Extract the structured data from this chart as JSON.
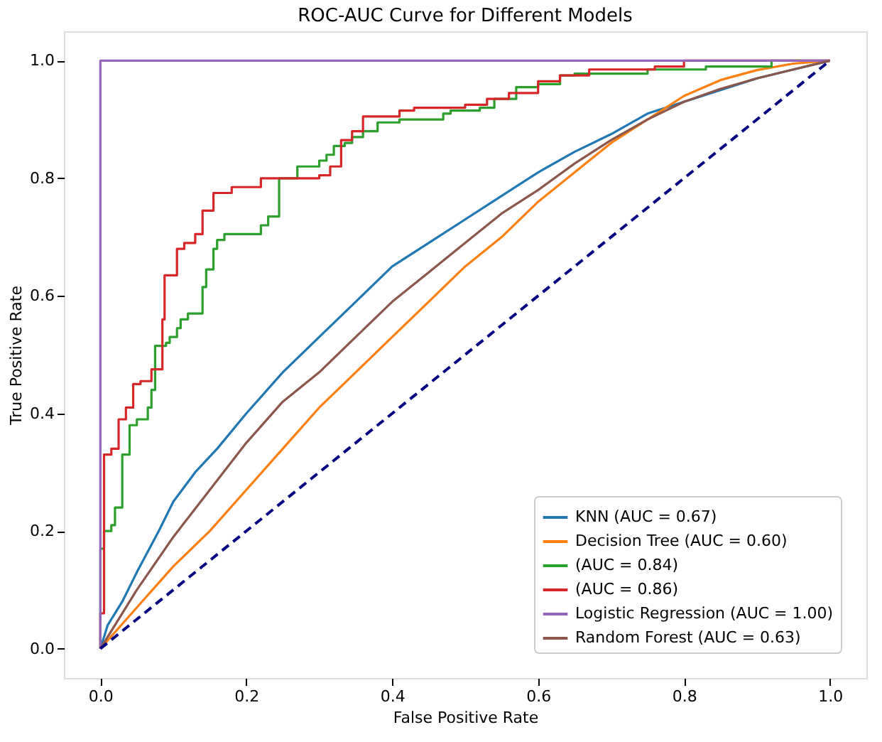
{
  "chart_data": {
    "type": "line",
    "title": "ROC-AUC Curve for Different Models",
    "xlabel": "False Positive Rate",
    "ylabel": "True Positive Rate",
    "xlim": [
      -0.05,
      1.05
    ],
    "ylim": [
      -0.05,
      1.05
    ],
    "xticks": [
      {
        "value": 0,
        "label": "0.0"
      },
      {
        "value": 0.2,
        "label": "0.2"
      },
      {
        "value": 0.4,
        "label": "0.4"
      },
      {
        "value": 0.6,
        "label": "0.6"
      },
      {
        "value": 0.8,
        "label": "0.8"
      },
      {
        "value": 1,
        "label": "1.0"
      }
    ],
    "yticks": [
      {
        "value": 0,
        "label": "0.0"
      },
      {
        "value": 0.2,
        "label": "0.2"
      },
      {
        "value": 0.4,
        "label": "0.4"
      },
      {
        "value": 0.6,
        "label": "0.6"
      },
      {
        "value": 0.8,
        "label": "0.8"
      },
      {
        "value": 1,
        "label": "1.0"
      }
    ],
    "grid": false,
    "legend": "bottom right",
    "series": [
      {
        "name": "KNN (AUC = 0.67)",
        "color": "#1f77b4",
        "x": [
          0,
          0.01,
          0.03,
          0.05,
          0.08,
          0.1,
          0.13,
          0.16,
          0.2,
          0.25,
          0.3,
          0.35,
          0.4,
          0.45,
          0.5,
          0.55,
          0.6,
          0.65,
          0.7,
          0.75,
          0.8,
          0.85,
          0.9,
          0.95,
          1
        ],
        "values": [
          0,
          0.04,
          0.08,
          0.13,
          0.2,
          0.25,
          0.3,
          0.34,
          0.4,
          0.47,
          0.53,
          0.59,
          0.65,
          0.69,
          0.73,
          0.77,
          0.81,
          0.845,
          0.875,
          0.91,
          0.93,
          0.95,
          0.97,
          0.985,
          1
        ]
      },
      {
        "name": "Decision Tree (AUC = 0.60)",
        "color": "#ff7f0e",
        "x": [
          0,
          0.05,
          0.1,
          0.15,
          0.2,
          0.25,
          0.3,
          0.35,
          0.4,
          0.45,
          0.5,
          0.55,
          0.6,
          0.65,
          0.7,
          0.75,
          0.8,
          0.85,
          0.9,
          0.95,
          1
        ],
        "values": [
          0,
          0.07,
          0.14,
          0.2,
          0.27,
          0.34,
          0.41,
          0.47,
          0.53,
          0.59,
          0.65,
          0.7,
          0.76,
          0.81,
          0.86,
          0.9,
          0.94,
          0.967,
          0.984,
          0.995,
          1
        ]
      },
      {
        "name": "(AUC = 0.84)",
        "color": "#2ca02c",
        "type": "step",
        "x": [
          0,
          0,
          0.005,
          0.015,
          0.02,
          0.03,
          0.04,
          0.05,
          0.065,
          0.07,
          0.075,
          0.09,
          0.095,
          0.105,
          0.11,
          0.12,
          0.14,
          0.145,
          0.155,
          0.16,
          0.17,
          0.22,
          0.23,
          0.245,
          0.27,
          0.3,
          0.31,
          0.32,
          0.335,
          0.345,
          0.36,
          0.38,
          0.41,
          0.47,
          0.48,
          0.52,
          0.54,
          0.57,
          0.6,
          0.63,
          0.65,
          0.75,
          0.83,
          0.92,
          1
        ],
        "values": [
          0,
          0.17,
          0.2,
          0.21,
          0.24,
          0.33,
          0.38,
          0.39,
          0.41,
          0.44,
          0.515,
          0.52,
          0.53,
          0.545,
          0.56,
          0.57,
          0.615,
          0.645,
          0.68,
          0.695,
          0.705,
          0.72,
          0.735,
          0.8,
          0.82,
          0.83,
          0.84,
          0.855,
          0.86,
          0.87,
          0.88,
          0.895,
          0.9,
          0.91,
          0.915,
          0.92,
          0.935,
          0.955,
          0.96,
          0.975,
          0.978,
          0.985,
          0.99,
          1,
          1
        ]
      },
      {
        "name": "(AUC = 0.86)",
        "color": "#d62728",
        "type": "step",
        "x": [
          0,
          0,
          0.005,
          0.015,
          0.025,
          0.035,
          0.045,
          0.055,
          0.07,
          0.085,
          0.088,
          0.105,
          0.115,
          0.13,
          0.14,
          0.155,
          0.18,
          0.22,
          0.3,
          0.315,
          0.33,
          0.345,
          0.36,
          0.41,
          0.43,
          0.5,
          0.53,
          0.56,
          0.6,
          0.63,
          0.67,
          0.76,
          0.8,
          1
        ],
        "values": [
          0,
          0.06,
          0.33,
          0.34,
          0.39,
          0.41,
          0.45,
          0.455,
          0.475,
          0.56,
          0.635,
          0.68,
          0.69,
          0.705,
          0.745,
          0.775,
          0.785,
          0.8,
          0.805,
          0.82,
          0.865,
          0.88,
          0.905,
          0.915,
          0.92,
          0.925,
          0.935,
          0.945,
          0.965,
          0.975,
          0.985,
          0.99,
          1,
          1
        ]
      },
      {
        "name": "Logistic Regression (AUC = 1.00)",
        "color": "#9467bd",
        "x": [
          0,
          0,
          1
        ],
        "values": [
          0,
          1,
          1
        ]
      },
      {
        "name": "Random Forest (AUC = 0.63)",
        "color": "#8c564b",
        "x": [
          0,
          0.05,
          0.1,
          0.15,
          0.2,
          0.25,
          0.3,
          0.35,
          0.4,
          0.45,
          0.5,
          0.55,
          0.6,
          0.65,
          0.7,
          0.75,
          0.8,
          0.85,
          0.9,
          0.95,
          1
        ],
        "values": [
          0,
          0.1,
          0.19,
          0.27,
          0.35,
          0.42,
          0.47,
          0.53,
          0.59,
          0.64,
          0.69,
          0.74,
          0.78,
          0.825,
          0.865,
          0.9,
          0.93,
          0.952,
          0.97,
          0.985,
          1
        ]
      },
      {
        "color": "#000080",
        "line_style": "dashed",
        "x": [
          0,
          1
        ],
        "values": [
          0,
          1
        ]
      }
    ]
  }
}
